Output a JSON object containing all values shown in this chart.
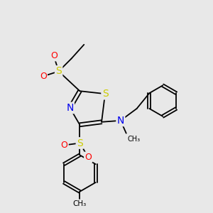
{
  "bg_color": "#e8e8e8",
  "atom_colors": {
    "S": "#cccc00",
    "N": "#0000ee",
    "O": "#ff0000",
    "C": "#000000"
  },
  "bond_color": "#000000",
  "lw": 1.3,
  "ring_lw": 1.3
}
